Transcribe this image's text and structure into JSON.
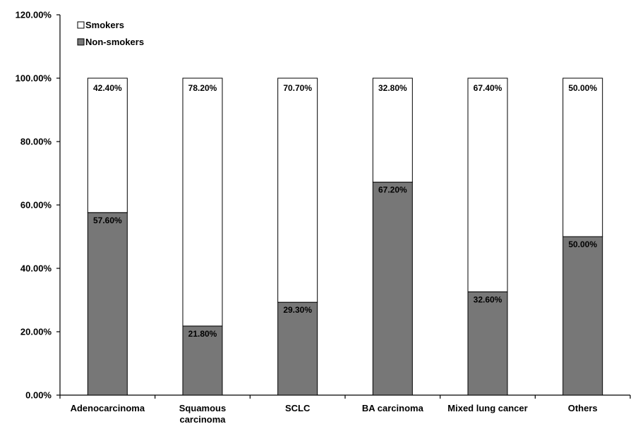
{
  "chart_data": {
    "type": "bar",
    "stacked": true,
    "categories": [
      [
        "Adenocarcinoma"
      ],
      [
        "Squamous",
        "carcinoma"
      ],
      [
        "SCLC"
      ],
      [
        "BA carcinoma"
      ],
      [
        "Mixed lung cancer"
      ],
      [
        "Others"
      ]
    ],
    "series": [
      {
        "name": "Non-smokers",
        "color": "#777777",
        "values": [
          57.6,
          21.8,
          29.3,
          67.2,
          32.6,
          50.0
        ],
        "labels": [
          "57.60%",
          "21.80%",
          "29.30%",
          "67.20%",
          "32.60%",
          "50.00%"
        ]
      },
      {
        "name": "Smokers",
        "color": "#ffffff",
        "values": [
          42.4,
          78.2,
          70.7,
          32.8,
          67.4,
          50.0
        ],
        "labels": [
          "42.40%",
          "78.20%",
          "70.70%",
          "32.80%",
          "67.40%",
          "50.00%"
        ]
      }
    ],
    "ylim": [
      0,
      120
    ],
    "yticks": [
      0,
      20,
      40,
      60,
      80,
      100,
      120
    ],
    "ytick_labels": [
      "0.00%",
      "20.00%",
      "40.00%",
      "60.00%",
      "80.00%",
      "100.00%",
      "120.00%"
    ],
    "legend": {
      "position": "top-left",
      "entries": [
        {
          "name": "Smokers",
          "color": "#ffffff"
        },
        {
          "name": "Non-smokers",
          "color": "#777777"
        }
      ]
    },
    "title": "",
    "xlabel": "",
    "ylabel": "",
    "grid": false
  }
}
